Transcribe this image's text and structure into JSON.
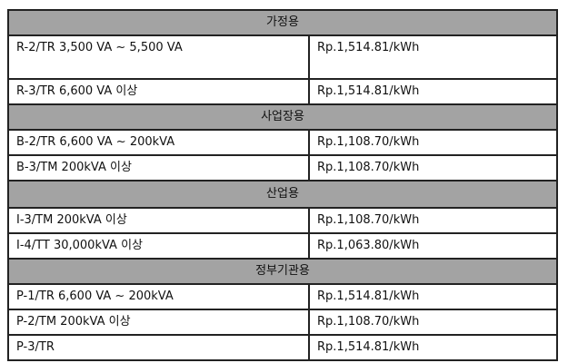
{
  "sections": [
    {
      "title": "가정용",
      "rows": [
        [
          "R-2/TR 3,500 VA ~ 5,500 VA",
          "Rp.1,514.81/kWh"
        ],
        [
          "R-3/TR 6,600 VA 이상",
          "Rp.1,514.81/kWh"
        ]
      ]
    },
    {
      "title": "사업장용",
      "rows": [
        [
          "B-2/TR 6,600 VA ~ 200kVA",
          "Rp.1,108.70/kWh"
        ],
        [
          "B-3/TM 200kVA 이상",
          "Rp.1,108.70/kWh"
        ]
      ]
    },
    {
      "title": "산업용",
      "rows": [
        [
          "I-3/TM 200kVA 이상",
          "Rp.1,108.70/kWh"
        ],
        [
          "I-4/TT 30,000kVA 이상",
          "Rp.1,063.80/kWh"
        ]
      ]
    },
    {
      "title": "정부기관용",
      "rows": [
        [
          "P-1/TR 6,600 VA ~ 200kVA",
          "Rp.1,514.81/kWh"
        ],
        [
          "P-2/TM 200kVA 이상",
          "Rp.1,108.70/kWh"
        ],
        [
          "P-3/TR",
          "Rp.1,514.81/kWh"
        ]
      ]
    }
  ]
}
